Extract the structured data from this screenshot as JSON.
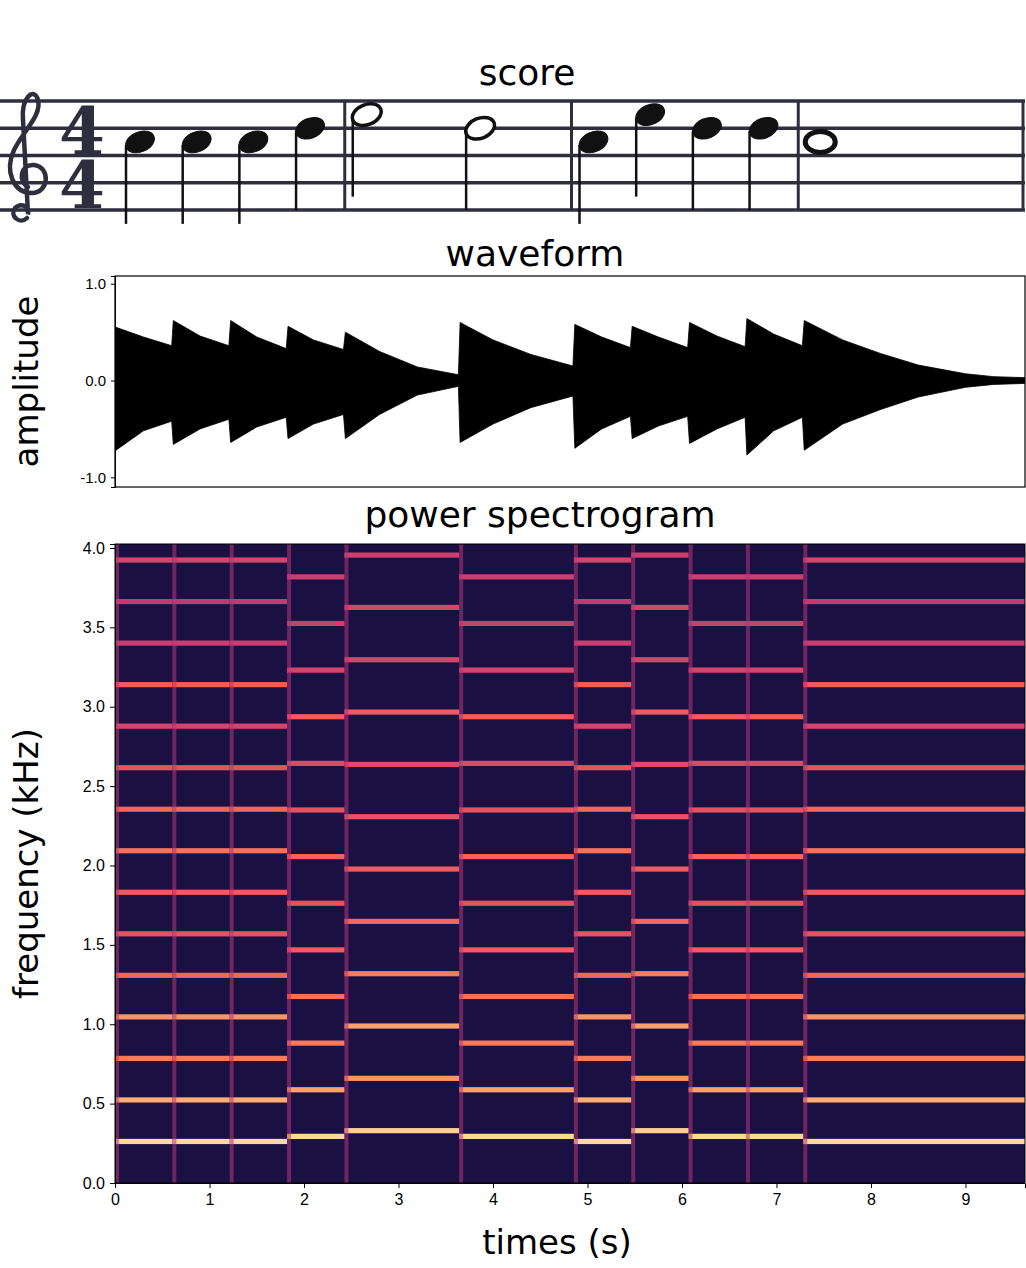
{
  "chart_data": [
    {
      "type": "score",
      "title": "score",
      "time_signature": [
        4,
        4
      ],
      "values": [
        72,
        72,
        72,
        74,
        76,
        74,
        72,
        76,
        74,
        74,
        72
      ],
      "durations": [
        1,
        1,
        1,
        1,
        2,
        2,
        1,
        1,
        1,
        1,
        4
      ]
    },
    {
      "type": "area",
      "title": "waveform",
      "y_label": "amplitude",
      "x": [
        0,
        0.01,
        0.3,
        0.6,
        0.617,
        0.9,
        1.205,
        1.224,
        1.5,
        1.812,
        1.831,
        2.1,
        2.418,
        2.438,
        2.8,
        3.2,
        3.634,
        3.652,
        4.0,
        4.4,
        4.846,
        4.866,
        5.15,
        5.454,
        5.473,
        5.75,
        6.06,
        6.08,
        6.37,
        6.668,
        6.687,
        6.97,
        7.274,
        7.294,
        7.7,
        8.1,
        8.5,
        9.0,
        9.3,
        9.63
      ],
      "series": [
        {
          "color": "#000000",
          "values": [
            0.45,
            0.55,
            0.45,
            0.36,
            0.62,
            0.46,
            0.36,
            0.62,
            0.45,
            0.33,
            0.56,
            0.42,
            0.32,
            0.5,
            0.3,
            0.14,
            0.06,
            0.6,
            0.42,
            0.27,
            0.15,
            0.58,
            0.45,
            0.34,
            0.56,
            0.45,
            0.34,
            0.6,
            0.46,
            0.35,
            0.64,
            0.48,
            0.36,
            0.62,
            0.42,
            0.28,
            0.16,
            0.07,
            0.04,
            0.03
          ]
        },
        {
          "color": "#000000",
          "values": [
            -0.6,
            -0.72,
            -0.52,
            -0.42,
            -0.66,
            -0.5,
            -0.4,
            -0.64,
            -0.48,
            -0.38,
            -0.6,
            -0.45,
            -0.35,
            -0.6,
            -0.35,
            -0.15,
            -0.06,
            -0.64,
            -0.45,
            -0.28,
            -0.16,
            -0.7,
            -0.5,
            -0.37,
            -0.6,
            -0.47,
            -0.37,
            -0.65,
            -0.5,
            -0.38,
            -0.77,
            -0.52,
            -0.38,
            -0.72,
            -0.45,
            -0.3,
            -0.17,
            -0.07,
            -0.04,
            -0.03
          ]
        }
      ],
      "xlim": [
        0,
        9.63
      ],
      "ylim": [
        -1.1,
        1.08
      ],
      "yticks": [
        {
          "value": -1,
          "label": "-1.0"
        },
        {
          "value": 0,
          "label": "0.0"
        },
        {
          "value": 1,
          "label": "1.0"
        }
      ],
      "tick_labels": "y"
    },
    {
      "type": "heatmap",
      "title": "power spectrogram",
      "x_label": "times (s)",
      "y_label": "frequency (kHz)",
      "xlim": [
        0,
        9.63
      ],
      "ylim": [
        0,
        4.025
      ],
      "xticks": [
        0,
        1,
        2,
        3,
        4,
        5,
        6,
        7,
        8,
        9
      ],
      "yticks": [
        {
          "value": 0,
          "label": "0.0"
        },
        {
          "value": 0.5,
          "label": "0.5"
        },
        {
          "value": 1,
          "label": "1.0"
        },
        {
          "value": 1.5,
          "label": "1.5"
        },
        {
          "value": 2,
          "label": "2.0"
        },
        {
          "value": 2.5,
          "label": "2.5"
        },
        {
          "value": 3,
          "label": "3.0"
        },
        {
          "value": 3.5,
          "label": "3.5"
        },
        {
          "value": 4,
          "label": "4.0"
        }
      ],
      "zlim": [
        -80,
        0
      ],
      "segments": [
        {
          "start": 0,
          "end": 0.607,
          "f0": 0.2616,
          "levels": [
            -6,
            -14,
            -22,
            -18,
            -26,
            -30,
            -28,
            -24,
            -26,
            -30,
            -34,
            -28,
            -36,
            -38,
            -34
          ]
        },
        {
          "start": 0.607,
          "end": 1.214,
          "f0": 0.2616,
          "levels": [
            -6,
            -14,
            -22,
            -18,
            -26,
            -30,
            -28,
            -24,
            -26,
            -30,
            -34,
            -28,
            -36,
            -38,
            -34
          ]
        },
        {
          "start": 1.214,
          "end": 1.821,
          "f0": 0.2616,
          "levels": [
            -6,
            -14,
            -22,
            -18,
            -26,
            -30,
            -28,
            -24,
            -26,
            -30,
            -34,
            -28,
            -36,
            -38,
            -34
          ]
        },
        {
          "start": 1.821,
          "end": 2.428,
          "f0": 0.2937,
          "levels": [
            -6,
            -16,
            -22,
            -24,
            -28,
            -30,
            -26,
            -30,
            -32,
            -28,
            -34,
            -36,
            -36
          ]
        },
        {
          "start": 2.428,
          "end": 3.642,
          "f0": 0.3296,
          "levels": [
            -8,
            -18,
            -16,
            -22,
            -26,
            -28,
            -30,
            -32,
            -28,
            -34,
            -34,
            -36
          ]
        },
        {
          "start": 3.642,
          "end": 4.856,
          "f0": 0.2937,
          "levels": [
            -6,
            -16,
            -22,
            -24,
            -28,
            -30,
            -26,
            -30,
            -32,
            -28,
            -34,
            -36,
            -36
          ]
        },
        {
          "start": 4.856,
          "end": 5.463,
          "f0": 0.2616,
          "levels": [
            -6,
            -14,
            -22,
            -18,
            -26,
            -30,
            -28,
            -24,
            -26,
            -30,
            -34,
            -28,
            -36,
            -38,
            -34
          ]
        },
        {
          "start": 5.463,
          "end": 6.07,
          "f0": 0.3296,
          "levels": [
            -8,
            -18,
            -16,
            -22,
            -26,
            -28,
            -30,
            -32,
            -28,
            -34,
            -34,
            -36
          ]
        },
        {
          "start": 6.07,
          "end": 6.677,
          "f0": 0.2937,
          "levels": [
            -6,
            -16,
            -22,
            -24,
            -28,
            -30,
            -26,
            -30,
            -32,
            -28,
            -34,
            -36,
            -36
          ]
        },
        {
          "start": 6.677,
          "end": 7.284,
          "f0": 0.2937,
          "levels": [
            -6,
            -16,
            -22,
            -24,
            -28,
            -30,
            -26,
            -30,
            -32,
            -28,
            -34,
            -36,
            -36
          ]
        },
        {
          "start": 7.284,
          "end": 9.63,
          "f0": 0.2616,
          "levels": [
            -6,
            -14,
            -22,
            -18,
            -26,
            -30,
            -28,
            -24,
            -26,
            -30,
            -34,
            -28,
            -36,
            -38,
            -34
          ]
        }
      ]
    }
  ]
}
